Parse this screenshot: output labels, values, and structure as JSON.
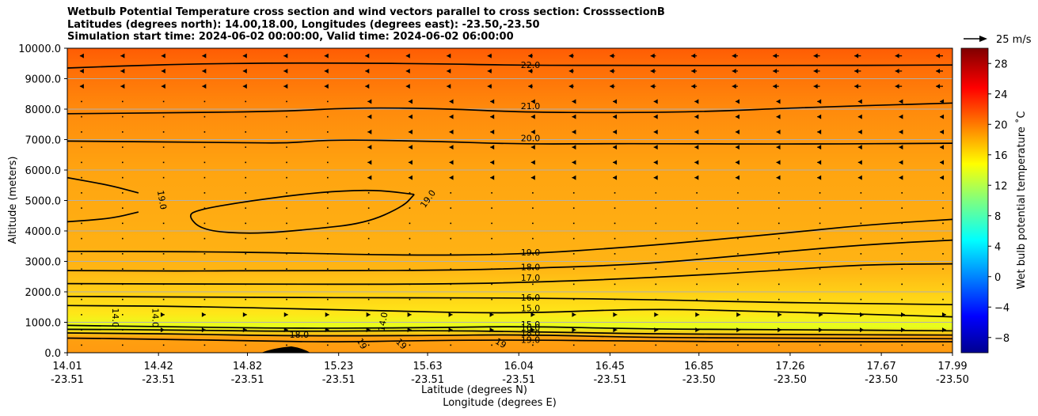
{
  "title_lines": [
    "Wetbulb Potential Temperature cross section and wind vectors parallel to cross section: CrosssectionB",
    "Latitudes (degrees north): 14.00,18.00, Longitudes (degrees east): -23.50,-23.50",
    "Simulation start time: 2024-06-02 00:00:00, Valid time: 2024-06-02 06:00:00"
  ],
  "chart_data": {
    "type": "heatmap",
    "subtype": "filled contour cross section with line contours and wind vectors",
    "ylabel": "Altitude (meters)",
    "xlabel_line1": "Latitude (degrees N)",
    "xlabel_line2": "Longitude (degrees E)",
    "ylim": [
      0,
      10000
    ],
    "y_ticks": [
      "0.0",
      "1000.0",
      "2000.0",
      "3000.0",
      "4000.0",
      "5000.0",
      "6000.0",
      "7000.0",
      "8000.0",
      "9000.0",
      "10000.0"
    ],
    "x_ticks": [
      {
        "lat": "14.01",
        "lon": "-23.51"
      },
      {
        "lat": "14.42",
        "lon": "-23.51"
      },
      {
        "lat": "14.82",
        "lon": "-23.51"
      },
      {
        "lat": "15.23",
        "lon": "-23.51"
      },
      {
        "lat": "15.63",
        "lon": "-23.51"
      },
      {
        "lat": "16.04",
        "lon": "-23.51"
      },
      {
        "lat": "16.45",
        "lon": "-23.51"
      },
      {
        "lat": "16.85",
        "lon": "-23.50"
      },
      {
        "lat": "17.26",
        "lon": "-23.50"
      },
      {
        "lat": "17.67",
        "lon": "-23.50"
      },
      {
        "lat": "17.99",
        "lon": "-23.50"
      }
    ],
    "grid": true,
    "colorbar": {
      "label": "Wet bulb potential temperature ˚C",
      "range": [
        -10,
        30
      ],
      "ticks": [
        "−8",
        "−4",
        "0",
        "4",
        "8",
        "12",
        "16",
        "20",
        "24",
        "28"
      ],
      "tick_values": [
        -8,
        -4,
        0,
        4,
        8,
        12,
        16,
        20,
        24,
        28
      ],
      "colormap": "jet"
    },
    "wind_key": "25 m/s",
    "contour_labels": [
      "22.0",
      "21.0",
      "20.0",
      "19.0",
      "19.0",
      "19.0",
      "18.0",
      "17.0",
      "16.0",
      "15.0",
      "15.0",
      "16.0",
      "18.0",
      "19.0",
      "14.0",
      "14.0",
      "14.0",
      "18.0",
      "19",
      "19",
      "19"
    ],
    "contours": [
      {
        "level": 22,
        "values": [
          [
            14.01,
            9350
          ],
          [
            14.5,
            9480
          ],
          [
            15.0,
            9520
          ],
          [
            15.6,
            9500
          ],
          [
            16.04,
            9440
          ],
          [
            16.6,
            9440
          ],
          [
            17.2,
            9430
          ],
          [
            17.99,
            9450
          ]
        ]
      },
      {
        "level": 21,
        "values": [
          [
            14.01,
            7850
          ],
          [
            14.5,
            7880
          ],
          [
            15.0,
            7930
          ],
          [
            15.3,
            8050
          ],
          [
            15.7,
            8020
          ],
          [
            16.04,
            7900
          ],
          [
            16.5,
            7880
          ],
          [
            16.9,
            7920
          ],
          [
            17.3,
            8050
          ],
          [
            17.99,
            8200
          ]
        ]
      },
      {
        "level": 20,
        "values": [
          [
            14.01,
            6950
          ],
          [
            14.8,
            6900
          ],
          [
            15.0,
            6880
          ],
          [
            15.2,
            7000
          ],
          [
            15.63,
            6950
          ],
          [
            16.04,
            6850
          ],
          [
            16.5,
            6870
          ],
          [
            17.3,
            6850
          ],
          [
            17.99,
            6880
          ]
        ]
      },
      {
        "level": 19,
        "values": [
          [
            14.01,
            5750
          ],
          [
            14.2,
            5500
          ],
          [
            14.33,
            5250
          ]
        ]
      },
      {
        "level": 19,
        "values": [
          [
            14.01,
            4300
          ],
          [
            14.2,
            4400
          ],
          [
            14.33,
            4620
          ]
        ]
      },
      {
        "level": 19,
        "values": [
          [
            15.57,
            5200
          ],
          [
            15.4,
            5350
          ],
          [
            15.2,
            5300
          ],
          [
            15.0,
            5150
          ],
          [
            14.8,
            4950
          ],
          [
            14.6,
            4700
          ],
          [
            14.55,
            4500
          ],
          [
            14.62,
            4000
          ],
          [
            14.85,
            3900
          ],
          [
            15.1,
            4050
          ],
          [
            15.35,
            4250
          ],
          [
            15.52,
            4800
          ],
          [
            15.57,
            5200
          ]
        ]
      },
      {
        "level": 19,
        "values": [
          [
            14.01,
            3330
          ],
          [
            14.6,
            3320
          ],
          [
            15.0,
            3280
          ],
          [
            15.5,
            3200
          ],
          [
            16.04,
            3220
          ],
          [
            16.6,
            3500
          ],
          [
            17.2,
            3900
          ],
          [
            17.6,
            4200
          ],
          [
            17.99,
            4380
          ]
        ]
      },
      {
        "level": 18,
        "values": [
          [
            14.01,
            2700
          ],
          [
            14.5,
            2680
          ],
          [
            15.0,
            2700
          ],
          [
            15.63,
            2700
          ],
          [
            16.04,
            2760
          ],
          [
            16.6,
            2900
          ],
          [
            17.2,
            3300
          ],
          [
            17.6,
            3550
          ],
          [
            17.99,
            3700
          ]
        ]
      },
      {
        "level": 17,
        "values": [
          [
            14.01,
            2270
          ],
          [
            14.8,
            2250
          ],
          [
            15.63,
            2250
          ],
          [
            16.04,
            2300
          ],
          [
            16.6,
            2450
          ],
          [
            17.2,
            2700
          ],
          [
            17.6,
            2900
          ],
          [
            17.99,
            2920
          ]
        ]
      },
      {
        "level": 16,
        "values": [
          [
            14.01,
            1850
          ],
          [
            14.8,
            1820
          ],
          [
            15.63,
            1800
          ],
          [
            16.04,
            1800
          ],
          [
            16.6,
            1750
          ],
          [
            17.2,
            1650
          ],
          [
            17.99,
            1580
          ]
        ]
      },
      {
        "level": 15,
        "values": [
          [
            14.01,
            1550
          ],
          [
            14.6,
            1520
          ],
          [
            15.4,
            1380
          ],
          [
            16.04,
            1280
          ],
          [
            16.6,
            1450
          ],
          [
            17.2,
            1350
          ],
          [
            17.99,
            1180
          ]
        ]
      },
      {
        "level": 14,
        "values": [
          [
            14.01,
            900
          ],
          [
            14.5,
            850
          ],
          [
            15.0,
            800
          ],
          [
            15.63,
            820
          ],
          [
            16.04,
            870
          ],
          [
            16.6,
            780
          ],
          [
            17.2,
            760
          ],
          [
            17.99,
            720
          ]
        ]
      },
      {
        "level": 16,
        "values": [
          [
            14.01,
            770
          ],
          [
            14.5,
            750
          ],
          [
            15.0,
            700
          ],
          [
            15.63,
            730
          ],
          [
            16.04,
            700
          ],
          [
            16.6,
            620
          ],
          [
            17.2,
            600
          ],
          [
            17.99,
            580
          ]
        ]
      },
      {
        "level": 18,
        "values": [
          [
            14.01,
            650
          ],
          [
            14.5,
            620
          ],
          [
            15.0,
            550
          ],
          [
            15.63,
            560
          ],
          [
            16.04,
            600
          ],
          [
            16.6,
            500
          ],
          [
            17.2,
            480
          ],
          [
            17.99,
            460
          ]
        ]
      },
      {
        "level": 19,
        "values": [
          [
            14.01,
            480
          ],
          [
            14.4,
            450
          ],
          [
            14.9,
            380
          ],
          [
            15.2,
            350
          ],
          [
            15.6,
            400
          ],
          [
            16.04,
            420
          ],
          [
            16.6,
            380
          ],
          [
            17.2,
            360
          ],
          [
            17.99,
            360
          ]
        ]
      }
    ]
  }
}
